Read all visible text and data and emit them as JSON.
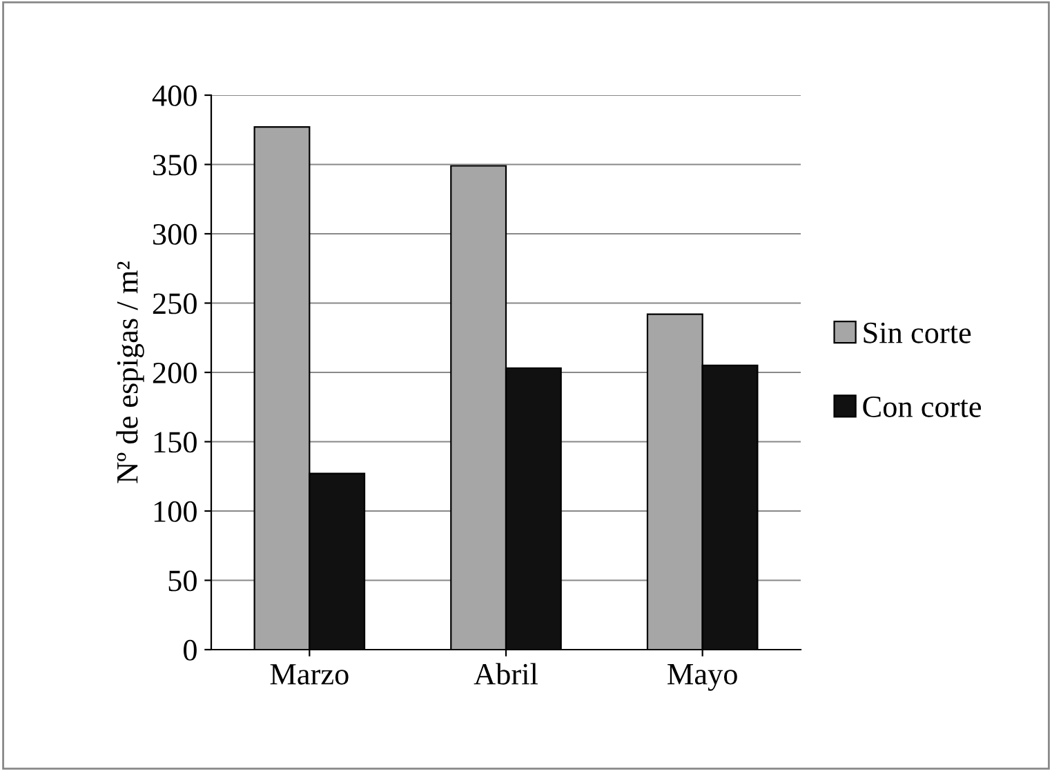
{
  "chart_data": {
    "type": "bar",
    "ylabel": "Nº de espigas / m²",
    "categories": [
      "Marzo",
      "Abril",
      "Mayo"
    ],
    "series": [
      {
        "name": "Sin corte",
        "color": "#a6a6a6",
        "values": [
          377,
          349,
          242
        ]
      },
      {
        "name": "Con corte",
        "color": "#111111",
        "values": [
          127,
          203,
          205
        ]
      }
    ],
    "ylim": [
      0,
      400
    ],
    "yticks": [
      0,
      50,
      100,
      150,
      200,
      250,
      300,
      350,
      400
    ],
    "grid": "y",
    "legend": "right"
  }
}
